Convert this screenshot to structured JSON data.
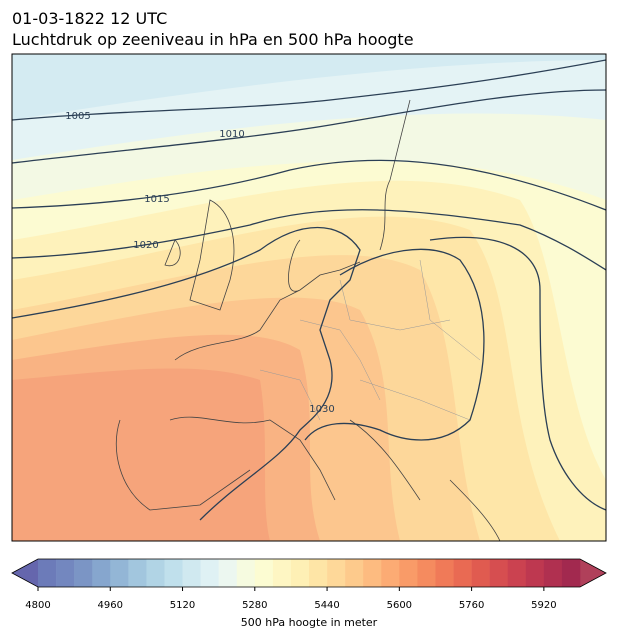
{
  "title": "01-03-1822 12 UTC",
  "subtitle": "Luchtdruk op zeeniveau in hPa en 500 hPa hoogte",
  "contour_labels": [
    "1005",
    "1010",
    "1015",
    "1020",
    "1030"
  ],
  "colorbar": {
    "label": "500 hPa hoogte in meter",
    "lim": [
      4800,
      6000
    ],
    "ticks": [
      4800,
      4960,
      5120,
      5280,
      5440,
      5600,
      5760,
      5920
    ],
    "colors": [
      "#6c7bb9",
      "#7387bf",
      "#7b95c5",
      "#86a6ce",
      "#93b6d6",
      "#a2c6de",
      "#b1d4e5",
      "#c0e0ec",
      "#d0e9f0",
      "#dff1f4",
      "#ecf7f0",
      "#f6fbe0",
      "#fcfcd2",
      "#fef6c3",
      "#fef0b5",
      "#fee5a6",
      "#fed899",
      "#fdca8c",
      "#fdbb80",
      "#fcab74",
      "#f99b68",
      "#f58b5f",
      "#f07a58",
      "#e96a53",
      "#e05b50",
      "#d64e50",
      "#cb4250",
      "#be3850",
      "#b03050",
      "#a2294f"
    ],
    "under_color": "#6566ad",
    "over_color": "#b0405a"
  }
}
